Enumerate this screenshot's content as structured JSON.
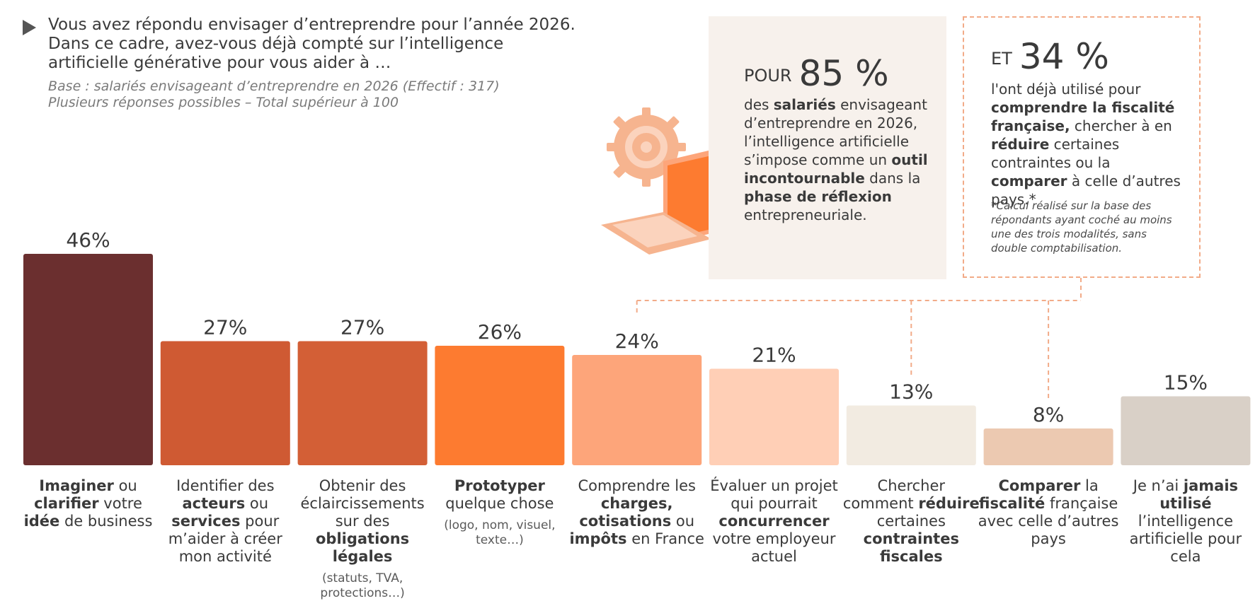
{
  "question": {
    "title": "Vous avez répondu envisager d’entreprendre pour l’année 2026. Dans ce cadre, avez-vous déjà compté sur l’intelligence artificielle générative pour vous aider à …",
    "base_line1": "Base : salariés envisageant d’entreprendre en 2026 (Effectif : 317)",
    "base_line2": "Plusieurs réponses possibles – Total supérieur à 100"
  },
  "callout_left": {
    "prefix": "POUR",
    "value": "85 %",
    "text_1": "des ",
    "bold_1": "salariés",
    "text_2": " envisageant d’entreprendre en 2026, l’intelligence artificielle s’impose comme un ",
    "bold_2": "outil incontournable",
    "text_3": " dans la ",
    "bold_3": "phase de réflexion",
    "text_4": " entrepreneuriale."
  },
  "callout_right": {
    "prefix": "ET",
    "value": "34 %",
    "text_1": "l'ont déjà utilisé pour ",
    "bold_1": "comprendre la fiscalité française,",
    "text_2": " chercher à en ",
    "bold_2": "réduire",
    "text_3": " certaines contraintes ou la ",
    "bold_3": "comparer",
    "text_4": " à celle d’autres pays.*",
    "footnote": "*Calcul réalisé sur la base des répondants ayant coché au moins une des trois modalités, sans double comptabilisation."
  },
  "chart_data": {
    "type": "bar",
    "title": "",
    "xlabel": "",
    "ylabel": "",
    "ylim": [
      0,
      50
    ],
    "unit": "%",
    "values": [
      46,
      27,
      27,
      26,
      24,
      21,
      13,
      8,
      15
    ],
    "value_labels": [
      "46%",
      "27%",
      "27%",
      "26%",
      "24%",
      "21%",
      "13%",
      "8%",
      "15%"
    ],
    "colors": [
      "#6b2f2f",
      "#cf5a33",
      "#d35f36",
      "#fd7b30",
      "#fda57a",
      "#ffcfb6",
      "#f2ebe1",
      "#ecc9b1",
      "#d9d0c7"
    ],
    "categories": [
      {
        "parts": [
          {
            "b": "Imaginer"
          },
          {
            "t": " ou "
          },
          {
            "b": "clarifier"
          },
          {
            "t": " votre "
          },
          {
            "b": "idée"
          },
          {
            "t": " de business"
          }
        ],
        "note": ""
      },
      {
        "parts": [
          {
            "t": "Identifier des "
          },
          {
            "b": "acteurs"
          },
          {
            "t": " ou "
          },
          {
            "b": "services"
          },
          {
            "t": " pour m’aider à créer mon activité"
          }
        ],
        "note": ""
      },
      {
        "parts": [
          {
            "t": "Obtenir des éclaircissements sur des "
          },
          {
            "b": "obligations légales"
          }
        ],
        "note": "(statuts, TVA, protections…)"
      },
      {
        "parts": [
          {
            "b": "Prototyper"
          },
          {
            "t": " quelque chose"
          }
        ],
        "note": "(logo, nom, visuel, texte…)"
      },
      {
        "parts": [
          {
            "t": "Comprendre les "
          },
          {
            "b": "charges, cotisations"
          },
          {
            "t": " ou "
          },
          {
            "b": "impôts"
          },
          {
            "t": " en France"
          }
        ],
        "note": ""
      },
      {
        "parts": [
          {
            "t": "Évaluer un projet qui pourrait "
          },
          {
            "b": "concurrencer"
          },
          {
            "t": " votre employeur actuel"
          }
        ],
        "note": ""
      },
      {
        "parts": [
          {
            "t": "Chercher comment "
          },
          {
            "b": "réduire"
          },
          {
            "t": " certaines "
          },
          {
            "b": "contraintes fiscales"
          }
        ],
        "note": ""
      },
      {
        "parts": [
          {
            "b": "Comparer"
          },
          {
            "t": " la "
          },
          {
            "b": "fiscalité"
          },
          {
            "t": " française avec celle d’autres pays"
          }
        ],
        "note": ""
      },
      {
        "parts": [
          {
            "t": "Je n’ai "
          },
          {
            "b": "jamais utilisé"
          },
          {
            "t": " l’intelligence artificielle pour cela"
          }
        ],
        "note": ""
      }
    ]
  },
  "colors": {
    "accent_dashed": "#f2ab88",
    "card_bg": "#f7f1ec"
  }
}
